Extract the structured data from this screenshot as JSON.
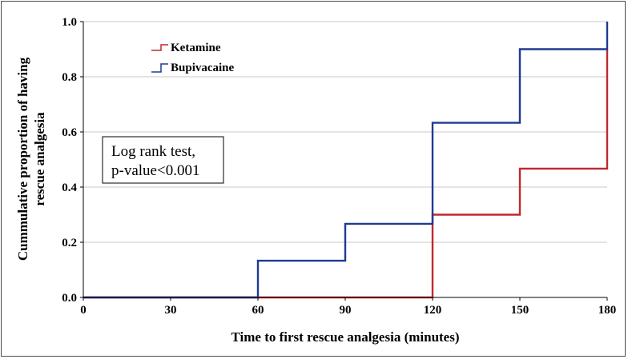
{
  "chart_data": {
    "type": "line",
    "step": true,
    "xlabel": "Time to first rescue analgesia (minutes)",
    "ylabel": [
      "Cummulative proportion of having",
      "rescue analgesia"
    ],
    "xlim": [
      0,
      180
    ],
    "ylim": [
      0,
      1.0
    ],
    "xticks": [
      0,
      30,
      60,
      90,
      120,
      150,
      180
    ],
    "yticks": [
      0.0,
      0.2,
      0.4,
      0.6,
      0.8,
      1.0
    ],
    "xtick_labels": [
      "0",
      "30",
      "60",
      "90",
      "120",
      "150",
      "180"
    ],
    "ytick_labels": [
      "0.0",
      "0.2",
      "0.4",
      "0.6",
      "0.8",
      "1.0"
    ],
    "grid": "horizontal",
    "legend_position": "top-left",
    "series": [
      {
        "name": "Ketamine",
        "color": "#c0282d",
        "x": [
          0,
          120,
          120,
          150,
          150,
          180,
          180
        ],
        "y": [
          0,
          0,
          0.3,
          0.3,
          0.467,
          0.467,
          0.9
        ]
      },
      {
        "name": "Bupivacaine",
        "color": "#1f3a93",
        "x": [
          0,
          60,
          60,
          90,
          90,
          120,
          120,
          150,
          150,
          180,
          180
        ],
        "y": [
          0,
          0,
          0.133,
          0.133,
          0.267,
          0.267,
          0.633,
          0.633,
          0.9,
          0.9,
          1.0
        ]
      }
    ],
    "annotation": [
      "Log rank test,",
      "p-value<0.001"
    ]
  }
}
